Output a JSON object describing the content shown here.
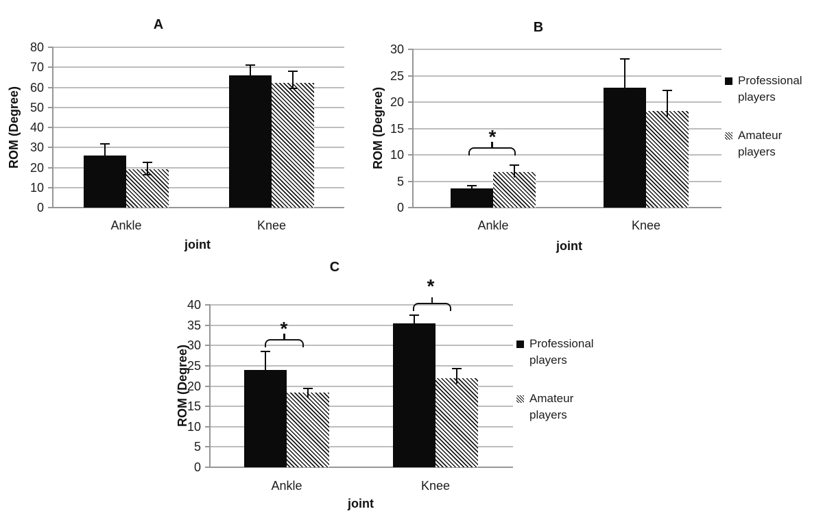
{
  "figure": {
    "background": "#ffffff",
    "panel_titles": [
      "A",
      "B",
      "C"
    ]
  },
  "colors": {
    "bar_fill": "#0b0b0b",
    "hatch_line": "#161616",
    "gridline": "#bdbdbd",
    "axis": "#969696",
    "text": "#1a1a1a"
  },
  "legend": {
    "items": [
      {
        "label": "Professional players",
        "marker": "solid-black-square"
      },
      {
        "label": "Amateur players",
        "marker": "diagonal-hatch-square"
      }
    ]
  },
  "chart_data": [
    {
      "id": "A",
      "title": "A",
      "type": "bar",
      "categories": [
        "Ankle",
        "Knee"
      ],
      "series": [
        {
          "name": "Professional players",
          "values": [
            26,
            66
          ],
          "errors": [
            5.8,
            5.0
          ]
        },
        {
          "name": "Amateur players",
          "values": [
            19,
            62.2
          ],
          "errors": [
            3.6,
            5.8
          ]
        }
      ],
      "xlabel": "joint",
      "ylabel": "ROM (Degree)",
      "ylim": [
        0,
        80
      ],
      "ystep": 10,
      "grid": true,
      "legend": false,
      "significance": []
    },
    {
      "id": "B",
      "title": "B",
      "type": "bar",
      "categories": [
        "Ankle",
        "Knee"
      ],
      "series": [
        {
          "name": "Professional players",
          "values": [
            3.6,
            22.7
          ],
          "errors": [
            0.5,
            5.5
          ]
        },
        {
          "name": "Amateur players",
          "values": [
            6.7,
            18.3
          ],
          "errors": [
            1.3,
            3.9
          ]
        }
      ],
      "xlabel": "joint",
      "ylabel": "ROM (Degree)",
      "ylim": [
        0,
        30
      ],
      "ystep": 5,
      "grid": true,
      "legend": true,
      "legend_position": "right",
      "significance": [
        {
          "category": "Ankle",
          "label": "*"
        }
      ]
    },
    {
      "id": "C",
      "title": "C",
      "type": "bar",
      "categories": [
        "Ankle",
        "Knee"
      ],
      "series": [
        {
          "name": "Professional players",
          "values": [
            24,
            35.4
          ],
          "errors": [
            4.5,
            2.1
          ]
        },
        {
          "name": "Amateur players",
          "values": [
            18.4,
            21.9
          ],
          "errors": [
            1.0,
            2.4
          ]
        }
      ],
      "xlabel": "joint",
      "ylabel": "ROM (Degree)",
      "ylim": [
        0,
        40
      ],
      "ystep": 5,
      "grid": true,
      "legend": true,
      "legend_position": "right",
      "significance": [
        {
          "category": "Ankle",
          "label": "*"
        },
        {
          "category": "Knee",
          "label": "*"
        }
      ]
    }
  ]
}
